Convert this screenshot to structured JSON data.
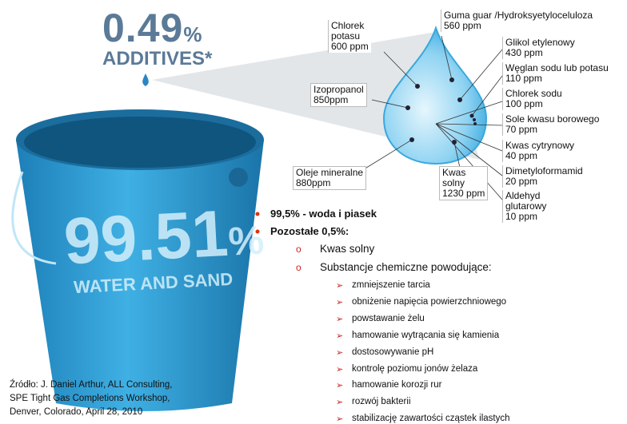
{
  "headline": {
    "number": "0.49",
    "unit": "%",
    "caption": "ADDITIVES*"
  },
  "bucket": {
    "number": "99.51",
    "unit": "%",
    "caption": "WATER AND SAND"
  },
  "labels": [
    {
      "lines": [
        "Chlorek",
        "potasu",
        "600 ppm"
      ]
    },
    {
      "lines": [
        "Guma guar /Hydroksyetyloceluloza",
        "560 ppm"
      ]
    },
    {
      "lines": [
        "Glikol etylenowy",
        "430 ppm"
      ]
    },
    {
      "lines": [
        "Węglan sodu lub potasu",
        "110 ppm"
      ]
    },
    {
      "lines": [
        "Chlorek sodu",
        "100 ppm"
      ]
    },
    {
      "lines": [
        "Sole kwasu borowego",
        "70 ppm"
      ]
    },
    {
      "lines": [
        "Kwas cytrynowy",
        "40 ppm"
      ]
    },
    {
      "lines": [
        "Dimetyloformamid",
        "20 ppm"
      ]
    },
    {
      "lines": [
        "Aldehyd",
        "glutarowy",
        "10 ppm"
      ]
    },
    {
      "lines": [
        "Izopropanol",
        "850ppm"
      ]
    },
    {
      "lines": [
        "Oleje mineralne",
        "880ppm"
      ]
    },
    {
      "lines": [
        "Kwas",
        "solny",
        "1230 ppm"
      ]
    }
  ],
  "bullets": [
    "99,5% - woda i piasek",
    "Pozostałe 0,5%:"
  ],
  "subbullets": [
    "Kwas solny",
    "Substancje chemiczne powodujące:"
  ],
  "effects": [
    "zmniejszenie tarcia",
    "obniżenie napięcia powierzchniowego",
    "powstawanie żelu",
    "hamowanie wytrącania się kamienia",
    "dostosowywanie pH",
    "kontrolę poziomu jonów żelaza",
    "hamowanie korozji rur",
    "rozwój bakterii",
    "stabilizację zawartości cząstek ilastych"
  ],
  "source": [
    "Źródło:  J. Daniel Arthur, ALL Consulting,",
    "SPE Tight Gas Completions Workshop,",
    "Denver, Colorado, April 28, 2010"
  ]
}
